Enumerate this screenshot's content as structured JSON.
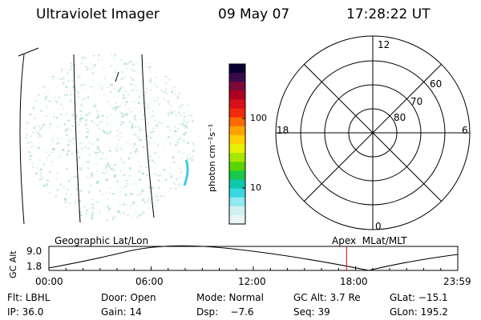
{
  "header": {
    "instrument": "Ultraviolet Imager",
    "date": "09 May 07",
    "time": "17:28:22 UT"
  },
  "colorbar": {
    "units_label": "photon cm⁻²s⁻¹",
    "ticks": [
      "100",
      "10"
    ],
    "colors": [
      "#0a0033",
      "#3a0a4a",
      "#7a0a3a",
      "#b00022",
      "#d8101a",
      "#f02a0a",
      "#ff6a00",
      "#ffa200",
      "#ffd000",
      "#e8f000",
      "#a6e600",
      "#5ad400",
      "#18c848",
      "#10c8a8",
      "#38d8e0",
      "#90e8f0",
      "#d0f0f2",
      "#e8f4f4"
    ]
  },
  "polar_plot": {
    "clock_labels": {
      "top": "12",
      "left": "18",
      "right": "6",
      "bottom": "0"
    },
    "lat_labels": [
      "60",
      "70",
      "80"
    ]
  },
  "timeline": {
    "label_left": "Geographic Lat/Lon",
    "label_right": "Apex  MLat/MLT",
    "ylabel": "GC Alt",
    "ytick_top": "9.0",
    "ytick_bottom": "1.8",
    "xticks": [
      "00:00",
      "06:00",
      "12:00",
      "18:00",
      "23:59"
    ],
    "marker_time_fraction": 0.7281,
    "marker_color": "#e00000"
  },
  "status": {
    "row1": [
      "Flt: LBHL",
      "Door: Open",
      "Mode: Normal",
      "GC Alt: 3.7 Re",
      "GLat: −15.1"
    ],
    "row2": [
      "IP: 36.0",
      "Gain: 14",
      "Dsp:    −7.6",
      "Seq: 39",
      "GLon: 195.2"
    ]
  }
}
